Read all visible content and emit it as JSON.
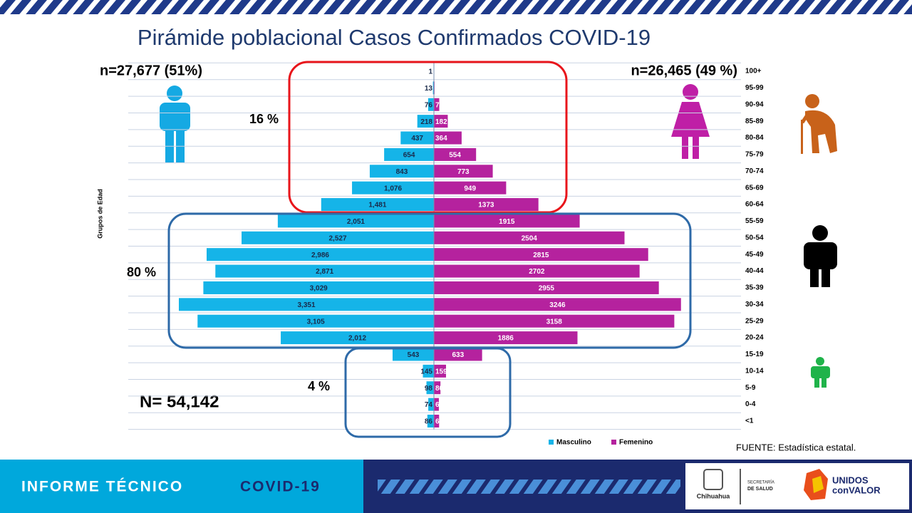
{
  "chart_data": {
    "type": "pyramid",
    "title": "Pirámide poblacional  Casos Confirmados COVID-19",
    "y_axis_label": "Grupos de Edad",
    "categories": [
      "100+",
      "95-99",
      "90-94",
      "85-89",
      "80-84",
      "75-79",
      "70-74",
      "65-69",
      "60-64",
      "55-59",
      "50-54",
      "45-49",
      "40-44",
      "35-39",
      "30-34",
      "25-29",
      "20-24",
      "15-19",
      "10-14",
      "5-9",
      "0-4",
      "<1"
    ],
    "series": [
      {
        "name": "Masculino",
        "color": "#15b4e8",
        "side": "left",
        "values": [
          1,
          13,
          76,
          218,
          437,
          654,
          843,
          1076,
          1481,
          2051,
          2527,
          2986,
          2871,
          3029,
          3351,
          3105,
          2012,
          543,
          145,
          98,
          74,
          86
        ],
        "value_labels": [
          "1",
          "13",
          "76",
          "218",
          "437",
          "654",
          "843",
          "1,076",
          "1,481",
          "2,051",
          "2,527",
          "2,986",
          "2,871",
          "3,029",
          "3,351",
          "3,105",
          "2,012",
          "543",
          "145",
          "98",
          "74",
          "86"
        ]
      },
      {
        "name": "Femenino",
        "color": "#b5229e",
        "side": "right",
        "values": [
          0,
          8,
          70,
          182,
          364,
          554,
          773,
          949,
          1373,
          1915,
          2504,
          2815,
          2702,
          2955,
          3246,
          3158,
          1886,
          633,
          159,
          86,
          65,
          68
        ]
      }
    ],
    "annotations": {
      "male_total": "n=27,677 (51%)",
      "female_total": "n=26,465 (49 %)",
      "group_old": "16 %",
      "group_adult": "80 %",
      "group_young": "4 %",
      "grand_total": "N= 54,142"
    },
    "grid": true
  },
  "source": "FUENTE:  Estadística estatal.",
  "footer": {
    "title": "INFORME TÉCNICO",
    "highlight": "COVID-19",
    "logo_city": "Chihuahua",
    "logo_dept_1": "SECRETARÍA",
    "logo_dept_2": "DE SALUD",
    "logo_brand_1": "UNIDOS",
    "logo_brand_2": "conVALOR"
  }
}
